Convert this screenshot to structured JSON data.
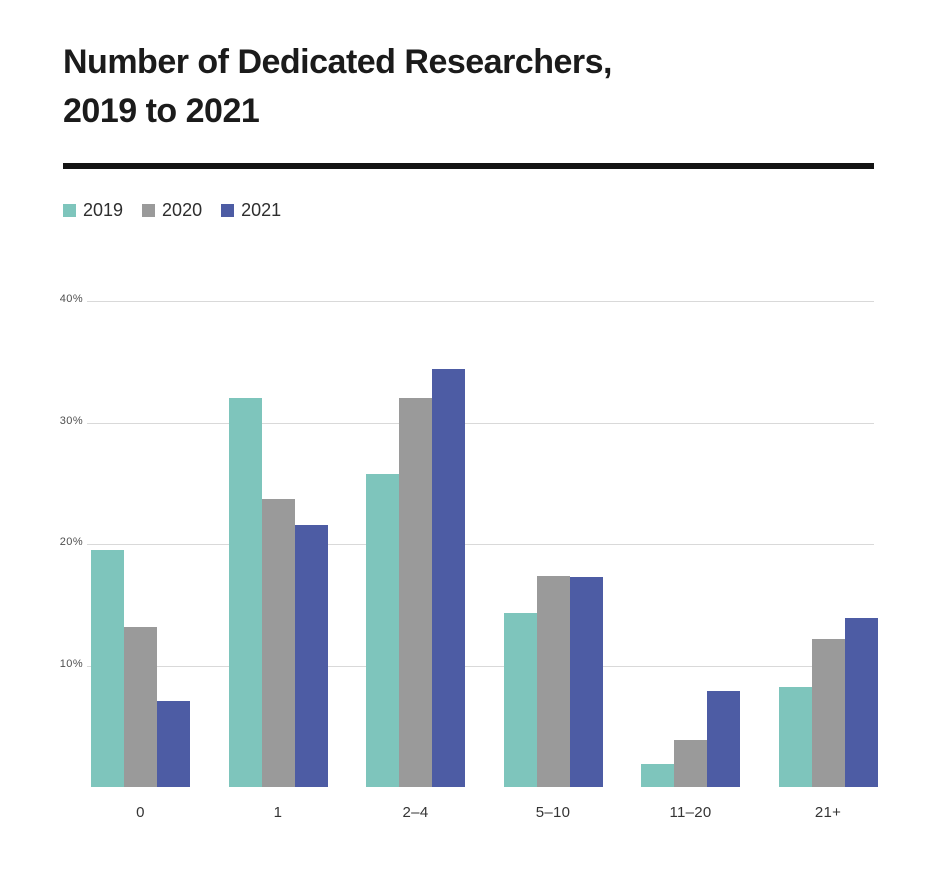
{
  "page": {
    "title_lines": [
      "Number of Dedicated Researchers,",
      "2019 to 2021"
    ]
  },
  "chart_data": {
    "type": "bar",
    "title": "Number of Dedicated Researchers, 2019 to 2021",
    "categories": [
      "0",
      "1",
      "2–4",
      "5–10",
      "11–20",
      "21+"
    ],
    "series": [
      {
        "name": "2019",
        "color": "#7ec5bc",
        "values": [
          19.5,
          32.0,
          25.8,
          14.3,
          1.9,
          8.2
        ]
      },
      {
        "name": "2020",
        "color": "#9a9a9a",
        "values": [
          13.2,
          23.7,
          32.0,
          17.4,
          3.9,
          12.2
        ]
      },
      {
        "name": "2021",
        "color": "#4d5ca4",
        "values": [
          7.1,
          21.6,
          34.4,
          17.3,
          7.9,
          13.9
        ]
      }
    ],
    "xlabel": "",
    "ylabel": "",
    "ylim": [
      0,
      40
    ],
    "yticks": [
      40,
      30,
      20,
      10
    ],
    "ytick_labels": [
      "40%",
      "30%",
      "20%",
      "10%"
    ],
    "grid": true,
    "legend_position": "top-left",
    "background_color": "#ffffff",
    "gridline_color": "#d9d9d9",
    "divider_color": "#141414",
    "title_color": "#1b1b1b"
  }
}
